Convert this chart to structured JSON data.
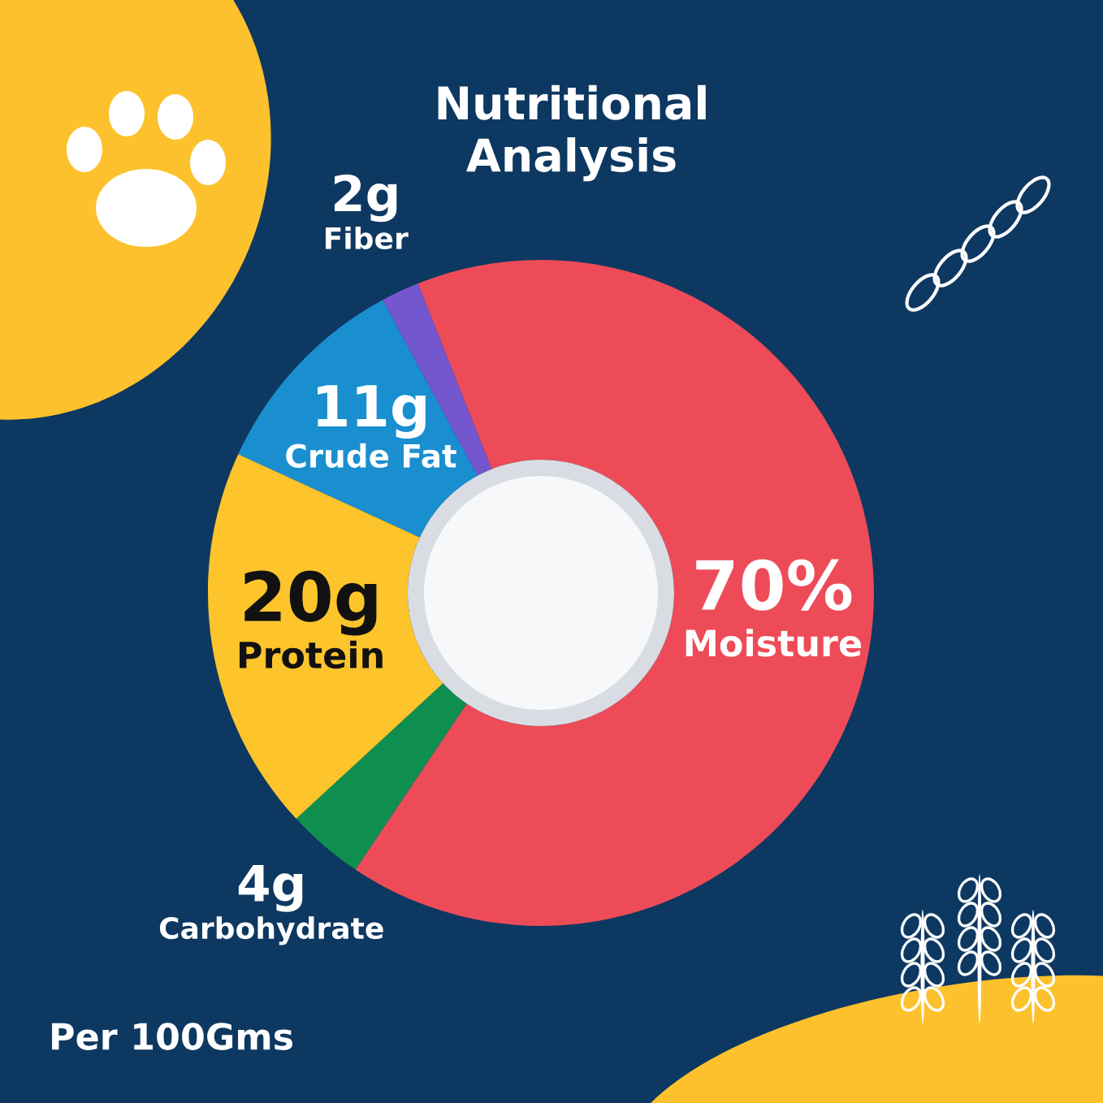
{
  "chart_data": {
    "type": "donut",
    "title": "Nutritional Analysis",
    "categories": [
      "Crude Fat",
      "Fiber",
      "Moisture",
      "Carbohydrate",
      "Protein"
    ],
    "values": [
      11,
      2,
      70,
      4,
      20
    ],
    "value_labels": [
      "11g",
      "2g",
      "70%",
      "4g",
      "20g"
    ],
    "colors": [
      "#1a8fd0",
      "#7457cf",
      "#ee4b58",
      "#0f8f4f",
      "#fdc42b"
    ],
    "annotations": [
      "Per 100Gms"
    ]
  }
}
